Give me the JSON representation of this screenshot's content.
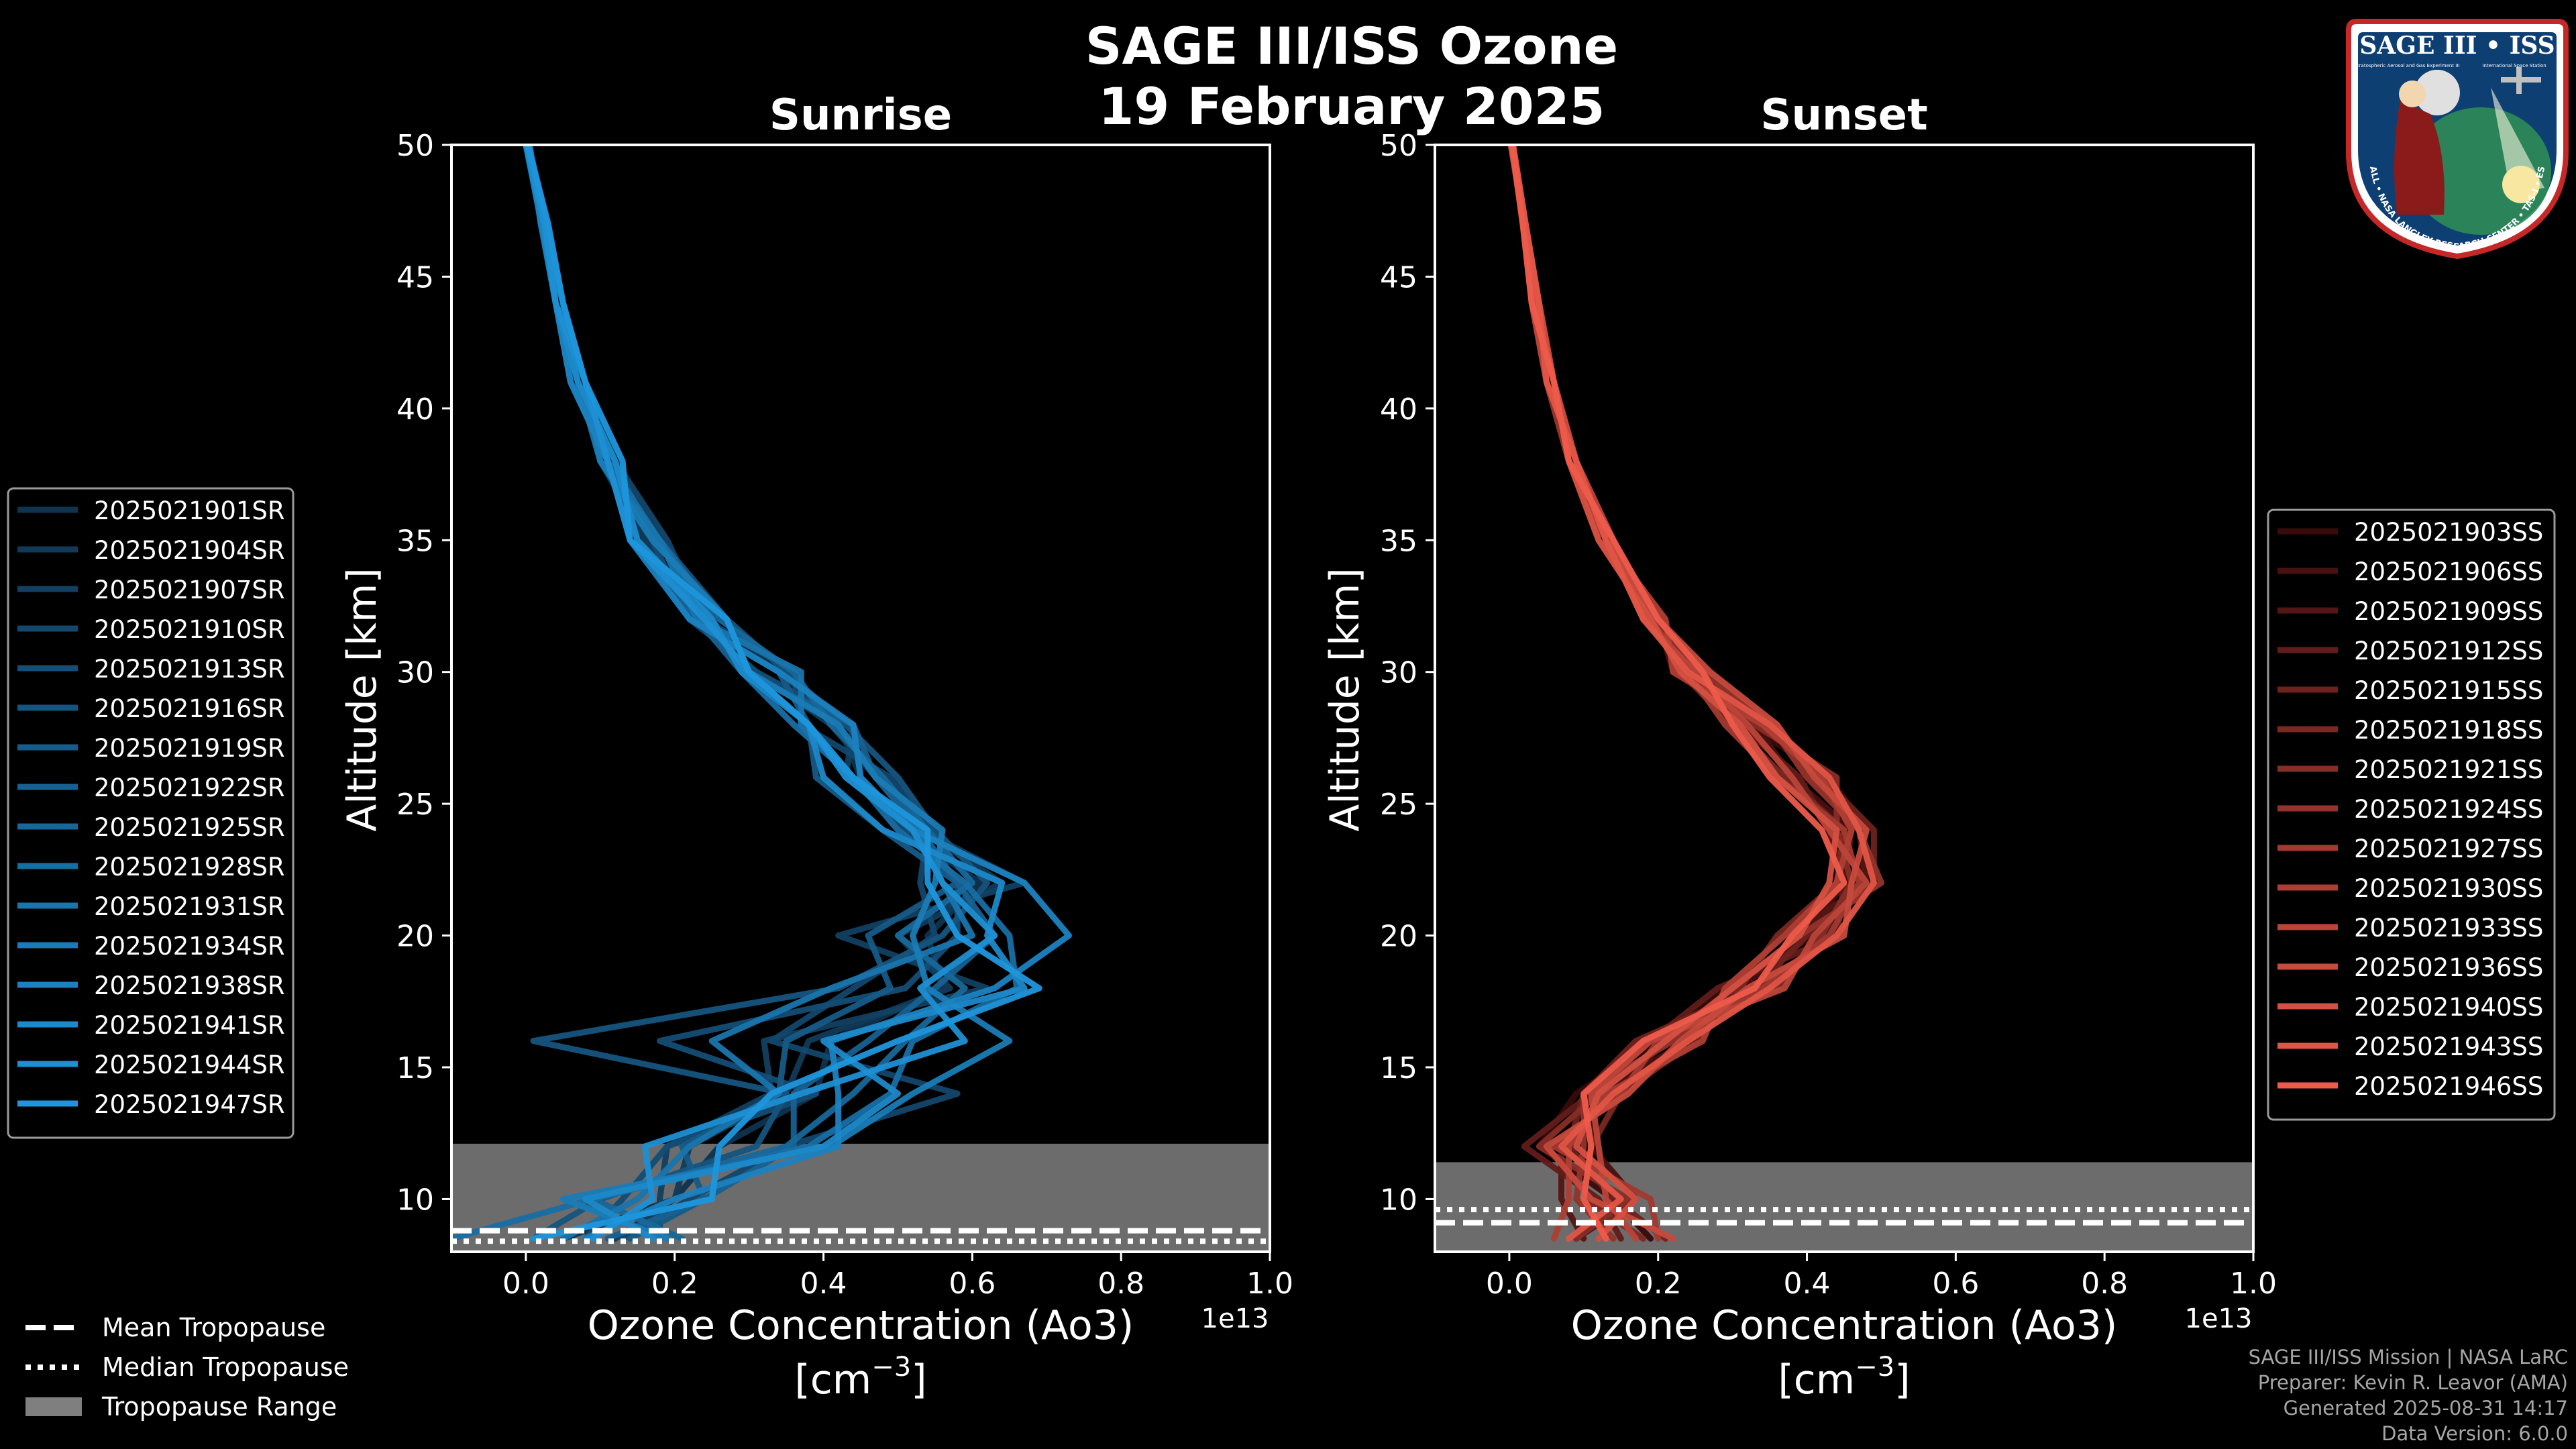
{
  "title_line1": "SAGE III/ISS Ozone",
  "title_line2": "19 February 2025",
  "colors": {
    "background": "#000000",
    "sunrise_dark": "#10334f",
    "sunrise_light": "#1e96dc",
    "sunset_dark": "#3a0b0b",
    "sunset_light": "#ee5b4b",
    "tropopause_band": "#7f7f7f"
  },
  "chart_data": [
    {
      "type": "line",
      "panel": "sunrise",
      "title": "Sunrise",
      "xlabel_line1": "Ozone Concentration (Ao3)",
      "xlabel_line2": "[cm",
      "xlabel_exp": "−3",
      "xlabel_close": "]",
      "ylabel": "Altitude [km]",
      "offset_label": "1e13",
      "xlim": [
        -0.1,
        1.0
      ],
      "ylim": [
        8,
        50
      ],
      "xticks": [
        0.0,
        0.2,
        0.4,
        0.6,
        0.8,
        1.0
      ],
      "xtick_labels": [
        "0.0",
        "0.2",
        "0.4",
        "0.6",
        "0.8",
        "1.0"
      ],
      "yticks": [
        10,
        15,
        20,
        25,
        30,
        35,
        40,
        45,
        50
      ],
      "ytick_labels": [
        "10",
        "15",
        "20",
        "25",
        "30",
        "35",
        "40",
        "45",
        "50"
      ],
      "altitudes_km": [
        8.5,
        10,
        12,
        14,
        16,
        18,
        20,
        22,
        24,
        26,
        28,
        30,
        32,
        35,
        38,
        41,
        44,
        47,
        50
      ],
      "series": [
        {
          "name": "2025021901SR",
          "values": [
            0.05,
            0.2,
            0.26,
            0.39,
            0.41,
            0.56,
            0.54,
            0.61,
            0.51,
            0.45,
            0.42,
            0.34,
            0.24,
            0.16,
            0.11,
            0.07,
            0.04,
            0.025,
            0.005
          ]
        },
        {
          "name": "2025021904SR",
          "values": [
            0.12,
            0.2,
            0.22,
            0.35,
            0.38,
            0.57,
            0.5,
            0.64,
            0.53,
            0.47,
            0.41,
            0.31,
            0.23,
            0.16,
            0.1,
            0.07,
            0.05,
            0.028,
            0.002
          ]
        },
        {
          "name": "2025021907SR",
          "values": [
            0.18,
            0.18,
            0.19,
            0.33,
            0.32,
            0.62,
            0.42,
            0.67,
            0.53,
            0.43,
            0.44,
            0.3,
            0.25,
            0.15,
            0.12,
            0.08,
            0.05,
            0.025,
            0.001
          ]
        },
        {
          "name": "2025021910SR",
          "values": [
            0.13,
            0.22,
            0.35,
            0.58,
            0.33,
            0.44,
            0.55,
            0.53,
            0.54,
            0.49,
            0.37,
            0.36,
            0.24,
            0.19,
            0.12,
            0.08,
            0.05,
            0.03,
            0.002
          ]
        },
        {
          "name": "2025021913SR",
          "values": [
            0.08,
            0.13,
            0.19,
            0.39,
            0.18,
            0.51,
            0.58,
            0.58,
            0.51,
            0.45,
            0.44,
            0.31,
            0.22,
            0.17,
            0.12,
            0.06,
            0.04,
            0.028,
            0.004
          ]
        },
        {
          "name": "2025021916SR",
          "values": [
            0.01,
            0.1,
            0.31,
            0.35,
            0.01,
            0.42,
            0.56,
            0.62,
            0.55,
            0.5,
            0.43,
            0.35,
            0.27,
            0.18,
            0.11,
            0.06,
            0.04,
            0.028,
            0.004
          ]
        },
        {
          "name": "2025021919SR",
          "values": [
            0.14,
            0.24,
            0.21,
            0.34,
            0.35,
            0.49,
            0.46,
            0.58,
            0.48,
            0.39,
            0.38,
            0.34,
            0.22,
            0.15,
            0.11,
            0.06,
            0.05,
            0.027,
            0.002
          ]
        },
        {
          "name": "2025021922SR",
          "values": [
            0.11,
            0.24,
            0.36,
            0.36,
            0.46,
            0.55,
            0.63,
            0.58,
            0.53,
            0.47,
            0.44,
            0.29,
            0.23,
            0.15,
            0.11,
            0.06,
            0.04,
            0.021,
            0.001
          ]
        },
        {
          "name": "2025021925SR",
          "values": [
            0.21,
            0.09,
            0.35,
            0.44,
            0.51,
            0.59,
            0.5,
            0.6,
            0.54,
            0.48,
            0.41,
            0.36,
            0.26,
            0.18,
            0.1,
            0.08,
            0.05,
            0.023,
            0.003
          ]
        },
        {
          "name": "2025021928SR",
          "values": [
            -0.1,
            0.09,
            0.38,
            0.49,
            0.52,
            0.66,
            0.65,
            0.59,
            0.5,
            0.44,
            0.36,
            0.29,
            0.25,
            0.18,
            0.11,
            0.07,
            0.04,
            0.026,
            0.002
          ]
        },
        {
          "name": "2025021931SR",
          "values": [
            0.05,
            0.15,
            0.22,
            0.34,
            0.25,
            0.41,
            0.6,
            0.56,
            0.53,
            0.44,
            0.37,
            0.37,
            0.23,
            0.18,
            0.1,
            0.07,
            0.04,
            0.02,
            0.004
          ]
        },
        {
          "name": "2025021934SR",
          "values": [
            0.19,
            0.05,
            0.41,
            0.52,
            0.65,
            0.54,
            0.52,
            0.55,
            0.56,
            0.47,
            0.42,
            0.3,
            0.27,
            0.17,
            0.1,
            0.08,
            0.05,
            0.02,
            0.005
          ]
        },
        {
          "name": "2025021938SR",
          "values": [
            0.08,
            0.2,
            0.42,
            0.42,
            0.41,
            0.63,
            0.73,
            0.67,
            0.52,
            0.45,
            0.44,
            0.34,
            0.22,
            0.14,
            0.11,
            0.06,
            0.04,
            0.021,
            0.0
          ]
        },
        {
          "name": "2025021941SR",
          "values": [
            0.17,
            0.08,
            0.4,
            0.5,
            0.4,
            0.67,
            0.62,
            0.64,
            0.48,
            0.4,
            0.38,
            0.29,
            0.25,
            0.15,
            0.12,
            0.07,
            0.04,
            0.024,
            0.0
          ]
        },
        {
          "name": "2025021944SR",
          "values": [
            0.09,
            0.17,
            0.16,
            0.37,
            0.59,
            0.53,
            0.63,
            0.56,
            0.52,
            0.43,
            0.38,
            0.3,
            0.24,
            0.14,
            0.11,
            0.08,
            0.04,
            0.026,
            0.002
          ]
        },
        {
          "name": "2025021947SR",
          "values": [
            0.01,
            0.25,
            0.26,
            0.33,
            0.5,
            0.69,
            0.58,
            0.54,
            0.54,
            0.44,
            0.38,
            0.3,
            0.27,
            0.14,
            0.13,
            0.08,
            0.05,
            0.03,
            0.003
          ]
        }
      ],
      "tropopause_range_km": [
        8,
        12.1
      ],
      "mean_tropopause_km": 8.8,
      "median_tropopause_km": 8.4
    },
    {
      "type": "line",
      "panel": "sunset",
      "title": "Sunset",
      "xlabel_line1": "Ozone Concentration (Ao3)",
      "xlabel_line2": "[cm",
      "xlabel_exp": "−3",
      "xlabel_close": "]",
      "ylabel": "Altitude [km]",
      "offset_label": "1e13",
      "xlim": [
        -0.1,
        1.0
      ],
      "ylim": [
        8,
        50
      ],
      "xticks": [
        0.0,
        0.2,
        0.4,
        0.6,
        0.8,
        1.0
      ],
      "xtick_labels": [
        "0.0",
        "0.2",
        "0.4",
        "0.6",
        "0.8",
        "1.0"
      ],
      "yticks": [
        10,
        15,
        20,
        25,
        30,
        35,
        40,
        45,
        50
      ],
      "ytick_labels": [
        "10",
        "15",
        "20",
        "25",
        "30",
        "35",
        "40",
        "45",
        "50"
      ],
      "altitudes_km": [
        8.5,
        10,
        12,
        14,
        16,
        18,
        20,
        22,
        24,
        26,
        28,
        30,
        32,
        35,
        38,
        41,
        44,
        47,
        50
      ],
      "series": [
        {
          "name": "2025021903SS",
          "values": [
            0.19,
            0.14,
            0.04,
            0.09,
            0.2,
            0.29,
            0.41,
            0.47,
            0.48,
            0.43,
            0.32,
            0.25,
            0.18,
            0.13,
            0.09,
            0.06,
            0.035,
            0.02,
            0.005
          ]
        },
        {
          "name": "2025021906SS",
          "values": [
            0.09,
            0.17,
            0.11,
            0.12,
            0.24,
            0.31,
            0.4,
            0.45,
            0.46,
            0.38,
            0.33,
            0.22,
            0.2,
            0.12,
            0.08,
            0.06,
            0.04,
            0.022,
            0.004
          ]
        },
        {
          "name": "2025021909SS",
          "values": [
            0.1,
            0.07,
            0.07,
            0.14,
            0.21,
            0.35,
            0.38,
            0.48,
            0.47,
            0.41,
            0.36,
            0.24,
            0.19,
            0.13,
            0.09,
            0.06,
            0.035,
            0.018,
            0.003
          ]
        },
        {
          "name": "2025021912SS",
          "values": [
            0.15,
            0.12,
            0.02,
            0.11,
            0.19,
            0.28,
            0.44,
            0.45,
            0.43,
            0.39,
            0.31,
            0.26,
            0.2,
            0.14,
            0.08,
            0.05,
            0.03,
            0.018,
            0.005
          ]
        },
        {
          "name": "2025021915SS",
          "values": [
            0.21,
            0.14,
            0.08,
            0.1,
            0.17,
            0.33,
            0.4,
            0.49,
            0.49,
            0.42,
            0.34,
            0.25,
            0.18,
            0.13,
            0.09,
            0.06,
            0.04,
            0.022,
            0.002
          ]
        },
        {
          "name": "2025021918SS",
          "values": [
            0.18,
            0.1,
            0.11,
            0.15,
            0.25,
            0.31,
            0.36,
            0.44,
            0.45,
            0.37,
            0.3,
            0.23,
            0.2,
            0.12,
            0.08,
            0.05,
            0.035,
            0.02,
            0.003
          ]
        },
        {
          "name": "2025021921SS",
          "values": [
            0.09,
            0.16,
            0.04,
            0.12,
            0.18,
            0.36,
            0.42,
            0.46,
            0.44,
            0.44,
            0.33,
            0.24,
            0.19,
            0.13,
            0.09,
            0.06,
            0.04,
            0.021,
            0.004
          ]
        },
        {
          "name": "2025021924SS",
          "values": [
            0.14,
            0.09,
            0.1,
            0.1,
            0.22,
            0.3,
            0.39,
            0.5,
            0.47,
            0.4,
            0.35,
            0.26,
            0.18,
            0.14,
            0.08,
            0.05,
            0.035,
            0.019,
            0.002
          ]
        },
        {
          "name": "2025021927SS",
          "values": [
            0.2,
            0.19,
            0.06,
            0.15,
            0.2,
            0.34,
            0.43,
            0.47,
            0.45,
            0.36,
            0.29,
            0.24,
            0.19,
            0.12,
            0.09,
            0.06,
            0.04,
            0.022,
            0.005
          ]
        },
        {
          "name": "2025021930SS",
          "values": [
            0.06,
            0.08,
            0.08,
            0.13,
            0.26,
            0.29,
            0.37,
            0.44,
            0.46,
            0.42,
            0.34,
            0.22,
            0.21,
            0.13,
            0.08,
            0.06,
            0.035,
            0.018,
            0.003
          ]
        },
        {
          "name": "2025021933SS",
          "values": [
            0.17,
            0.13,
            0.12,
            0.11,
            0.19,
            0.37,
            0.41,
            0.48,
            0.43,
            0.38,
            0.32,
            0.25,
            0.18,
            0.14,
            0.09,
            0.05,
            0.03,
            0.02,
            0.004
          ]
        },
        {
          "name": "2025021936SS",
          "values": [
            0.22,
            0.11,
            0.05,
            0.16,
            0.23,
            0.32,
            0.45,
            0.46,
            0.48,
            0.41,
            0.36,
            0.27,
            0.2,
            0.13,
            0.09,
            0.06,
            0.04,
            0.021,
            0.002
          ]
        },
        {
          "name": "2025021940SS",
          "values": [
            0.12,
            0.17,
            0.09,
            0.12,
            0.21,
            0.3,
            0.39,
            0.43,
            0.44,
            0.36,
            0.31,
            0.23,
            0.19,
            0.12,
            0.08,
            0.06,
            0.035,
            0.019,
            0.003
          ]
        },
        {
          "name": "2025021943SS",
          "values": [
            0.08,
            0.15,
            0.07,
            0.14,
            0.24,
            0.35,
            0.44,
            0.49,
            0.47,
            0.43,
            0.35,
            0.24,
            0.18,
            0.13,
            0.09,
            0.05,
            0.04,
            0.022,
            0.005
          ]
        },
        {
          "name": "2025021946SS",
          "values": [
            0.13,
            0.1,
            0.11,
            0.1,
            0.18,
            0.33,
            0.38,
            0.45,
            0.42,
            0.35,
            0.3,
            0.26,
            0.2,
            0.14,
            0.08,
            0.06,
            0.03,
            0.018,
            0.004
          ]
        }
      ],
      "tropopause_range_km": [
        8,
        11.4
      ],
      "mean_tropopause_km": 9.1,
      "median_tropopause_km": 9.6
    }
  ],
  "shared_legend": [
    {
      "label": "Mean Tropopause",
      "style": "dashed"
    },
    {
      "label": "Median Tropopause",
      "style": "dotted"
    },
    {
      "label": "Tropopause Range",
      "style": "patch"
    }
  ],
  "badge": {
    "title": "SAGE III • ISS",
    "subtitle_left": "Stratospheric Aerosol and Gas Experiment III",
    "subtitle_right": "International Space Station",
    "ring_text": "BALL • NASA LANGLEY RESEARCH CENTER • TAS-I • ESA",
    "icon": "sage-iii-mission-patch"
  },
  "credits": [
    "SAGE III/ISS Mission | NASA LaRC",
    "Preparer: Kevin R. Leavor (AMA)",
    "Generated 2025-08-31 14:17",
    "Data Version: 6.0.0"
  ]
}
